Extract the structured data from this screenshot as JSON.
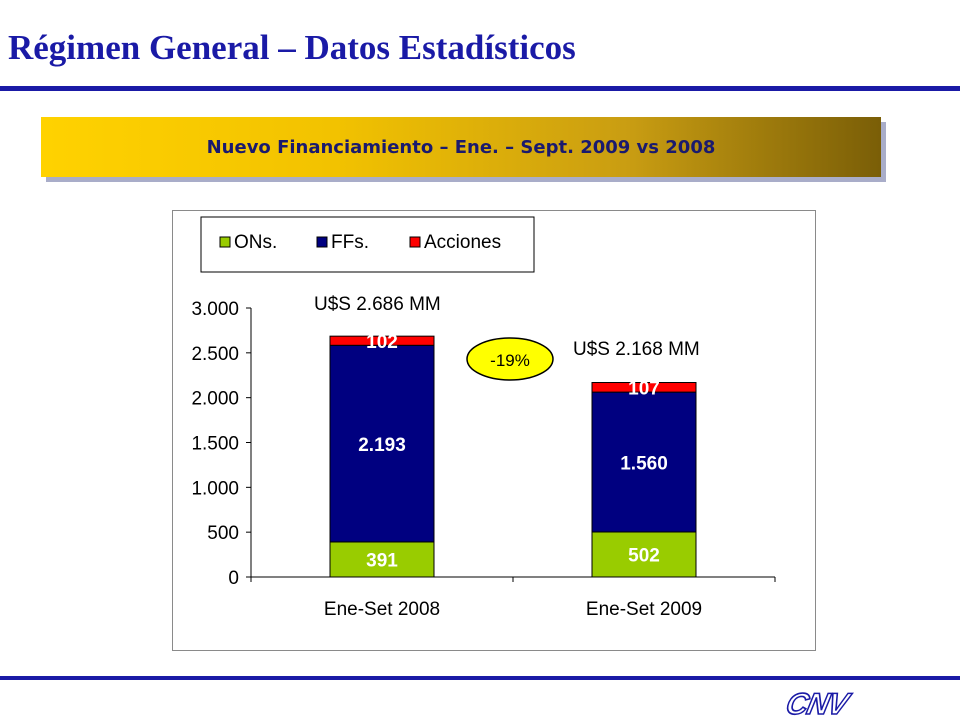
{
  "header": {
    "title": "Régimen General – Datos Estadísticos",
    "banner": "Nuevo Financiamiento – Ene. – Sept. 2009 vs 2008"
  },
  "logo": {
    "text": "CNV"
  },
  "colors": {
    "title": "#1a1aa6",
    "ons": "#99cc00",
    "ffs": "#000080",
    "acciones": "#ff0000"
  },
  "chart_data": {
    "type": "bar",
    "stacked": true,
    "categories": [
      "Ene-Set 2008",
      "Ene-Set 2009"
    ],
    "series": [
      {
        "name": "ONs.",
        "values": [
          391,
          502
        ],
        "labels": [
          "391",
          "502"
        ]
      },
      {
        "name": "FFs.",
        "values": [
          2193,
          1560
        ],
        "labels": [
          "2.193",
          "1.560"
        ]
      },
      {
        "name": "Acciones",
        "values": [
          102,
          107
        ],
        "labels": [
          "102",
          "107"
        ]
      }
    ],
    "totals": [
      "U$S 2.686 MM",
      "U$S 2.168 MM"
    ],
    "annotation": "-19%",
    "ylim": [
      0,
      3000
    ],
    "yticks": [
      0,
      500,
      1000,
      1500,
      2000,
      2500,
      3000
    ],
    "ytick_labels": [
      "0",
      "500",
      "1.000",
      "1.500",
      "2.000",
      "2.500",
      "3.000"
    ],
    "legend_position": "top-left",
    "grid": false
  }
}
